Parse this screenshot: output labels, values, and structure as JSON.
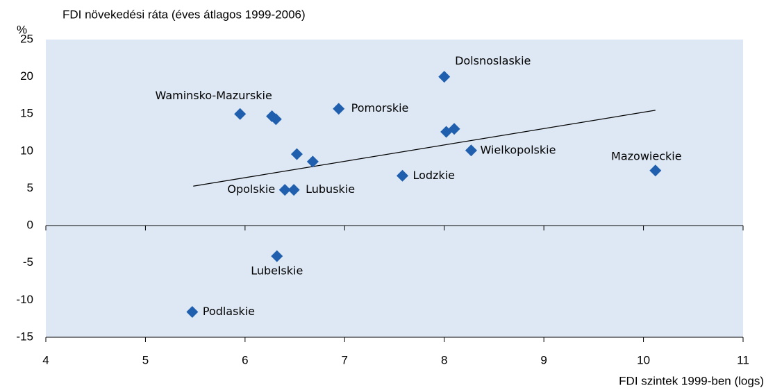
{
  "chart_data": {
    "type": "scatter",
    "title": "FDI növekedési ráta (éves átlagos 1999-2006)",
    "ylabel": "%",
    "xlabel": "FDI szintek 1999-ben (logs)",
    "x": [
      5.95,
      6.27,
      6.31,
      6.94,
      8.0,
      8.02,
      8.1,
      8.27,
      6.52,
      6.68,
      7.58,
      10.12,
      6.4,
      6.49,
      6.32,
      5.47
    ],
    "values": [
      15.0,
      14.7,
      14.3,
      15.7,
      20.0,
      12.6,
      13.0,
      10.1,
      9.6,
      8.6,
      6.7,
      7.4,
      4.8,
      4.8,
      -4.1,
      -11.6
    ],
    "labels": [
      "Waminsko-Mazurskie",
      null,
      null,
      "Pomorskie",
      "Dolsnoslaskie",
      null,
      null,
      "Wielkopolskie",
      null,
      null,
      "Lodzkie",
      "Mazowieckie",
      "Opolskie",
      "Lubuskie",
      "Lubelskie",
      "Podlaskie"
    ],
    "color": "#1f5fae",
    "trend_line": {
      "x": [
        5.48,
        10.12
      ],
      "y": [
        5.3,
        15.5
      ],
      "color": "#000000"
    },
    "xlim": [
      4,
      11
    ],
    "ylim": [
      -15,
      25
    ],
    "xticks": [
      4,
      5,
      6,
      7,
      8,
      9,
      10,
      11
    ],
    "yticks": [
      25,
      20,
      15,
      10,
      5,
      0,
      -5,
      -10,
      -15
    ],
    "zero_line": true,
    "background": "#dde8f4"
  }
}
